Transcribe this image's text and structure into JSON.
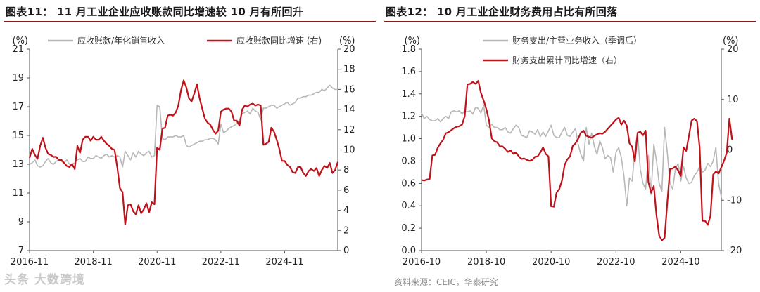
{
  "charts_meta": {
    "left_title": "图表11：  11 月工业企业应收账款同比增速较 10 月有所回升",
    "right_title": "图表12：  10 月工业企业财务费用占比有所回落",
    "left_source": "资料来源：CEIC，华泰研究",
    "right_source": "资料来源：CEIC，华泰研究",
    "watermark": "头条 大数跨境"
  },
  "colors": {
    "gray": "#b7b7b7",
    "red": "#c0121b",
    "axis": "#555555",
    "title_rule": "#8a1b1b"
  },
  "chart_data": [
    {
      "type": "line",
      "title": "11 月工业企业应收账款同比增速较 10 月有所回升",
      "left_unit": "(%)",
      "right_unit": "(%)",
      "ylim_left": [
        7,
        21
      ],
      "ylim_right": [
        0,
        20
      ],
      "left_ticks": [
        7,
        9,
        11,
        13,
        15,
        17,
        19,
        21
      ],
      "right_ticks": [
        0,
        2,
        4,
        6,
        8,
        10,
        12,
        14,
        16,
        18,
        20
      ],
      "x_start": "2016-11",
      "x_end": "2024-11",
      "x_ticks": [
        "2016-11",
        "2018-11",
        "2020-11",
        "2022-11",
        "2024-11"
      ],
      "legend_position": "top",
      "series": [
        {
          "name": "应收账款/年化销售收入",
          "axis": "left",
          "color": "#b7b7b7",
          "values": [
            13.0,
            13.1,
            13.3,
            12.9,
            12.8,
            12.9,
            13.2,
            13.4,
            13.1,
            13.0,
            13.2,
            13.3,
            13.2,
            13.1,
            13.3,
            13.0,
            13.0,
            13.1,
            13.3,
            13.4,
            13.2,
            13.2,
            13.5,
            13.4,
            13.4,
            13.6,
            13.5,
            13.4,
            13.6,
            13.7,
            13.5,
            13.6,
            13.5,
            13.6,
            13.5,
            12.8,
            13.9,
            13.6,
            13.3,
            13.8,
            13.5,
            13.9,
            13.7,
            13.6,
            13.8,
            13.9,
            13.5,
            13.6,
            17.1,
            17.0,
            14.8,
            14.7,
            14.9,
            14.9,
            14.9,
            15.0,
            14.9,
            14.9,
            15.0,
            14.3,
            14.2,
            14.3,
            14.4,
            14.5,
            14.6,
            14.6,
            14.7,
            14.7,
            14.8,
            14.8,
            14.7,
            14.4,
            15.8,
            15.2,
            15.3,
            15.5,
            15.6,
            15.7,
            15.8,
            16.1,
            16.5,
            16.6,
            16.7,
            16.5,
            16.9,
            16.7,
            16.6,
            16.1,
            16.9,
            16.9,
            17.0,
            17.1,
            17.1,
            16.9,
            17.0,
            17.1,
            17.2,
            17.3,
            17.1,
            17.2,
            17.3,
            17.6,
            17.6,
            17.7,
            17.7,
            17.8,
            17.8,
            17.9,
            18.0,
            18.0,
            18.2,
            18.1,
            18.3,
            18.5,
            18.3,
            18.2,
            18.2
          ]
        },
        {
          "name": "应收账款同比增速 (右)",
          "axis": "right",
          "color": "#c0121b",
          "values": [
            9.2,
            10.1,
            9.5,
            9.1,
            10.4,
            11.2,
            10.2,
            9.6,
            9.5,
            9.3,
            9.3,
            9.0,
            9.0,
            8.7,
            8.4,
            8.3,
            8.6,
            8.1,
            10.4,
            9.7,
            11.0,
            11.3,
            11.3,
            10.9,
            11.3,
            11.0,
            11.0,
            11.3,
            10.9,
            10.6,
            10.4,
            10.1,
            10.0,
            8.3,
            6.2,
            5.8,
            2.6,
            4.5,
            4.6,
            3.9,
            3.6,
            4.5,
            3.7,
            4.1,
            4.7,
            3.8,
            4.8,
            4.6,
            10.2,
            10.0,
            12.1,
            12.2,
            13.4,
            13.5,
            13.4,
            13.7,
            14.4,
            15.9,
            16.9,
            16.2,
            15.1,
            14.8,
            15.6,
            16.5,
            15.1,
            14.1,
            13.1,
            12.7,
            12.5,
            12.0,
            11.6,
            11.9,
            13.8,
            14.0,
            14.1,
            14.1,
            13.8,
            12.9,
            12.9,
            12.4,
            14.0,
            14.4,
            14.3,
            14.5,
            14.6,
            14.4,
            14.5,
            14.4,
            10.5,
            10.6,
            10.8,
            12.2,
            11.8,
            11.0,
            10.1,
            8.9,
            8.9,
            8.5,
            8.3,
            7.8,
            7.7,
            8.3,
            8.3,
            7.7,
            7.4,
            7.9,
            8.1,
            7.9,
            8.2,
            7.4,
            8.0,
            8.4,
            8.2,
            8.7,
            7.7,
            8.0,
            8.8
          ]
        }
      ]
    },
    {
      "type": "line",
      "title": "10 月工业企业财务费用占比有所回落",
      "left_unit": "(%)",
      "right_unit": "(%)",
      "ylim_left": [
        0.0,
        1.8
      ],
      "ylim_right": [
        -20,
        20
      ],
      "left_ticks": [
        0.0,
        0.2,
        0.4,
        0.6,
        0.8,
        1.0,
        1.2,
        1.4,
        1.6,
        1.8
      ],
      "right_ticks": [
        -20,
        -10,
        0,
        10,
        20
      ],
      "x_start": "2016-10",
      "x_end": "2024-10",
      "x_ticks": [
        "2016-10",
        "2018-10",
        "2020-10",
        "2022-10",
        "2024-10"
      ],
      "legend_position": "top",
      "series": [
        {
          "name": "财务支出/主营业务收入（季调后）",
          "axis": "left",
          "color": "#b7b7b7",
          "values": [
            1.23,
            1.18,
            1.2,
            1.17,
            1.16,
            1.16,
            1.18,
            1.15,
            1.18,
            1.2,
            1.18,
            1.24,
            1.25,
            1.24,
            1.25,
            1.22,
            1.25,
            1.24,
            1.25,
            1.22,
            1.28,
            1.27,
            1.23,
            1.3,
            1.12,
            1.1,
            1.13,
            1.1,
            1.1,
            1.08,
            1.08,
            1.1,
            1.06,
            1.05,
            1.09,
            1.12,
            1.1,
            1.03,
            1.02,
            1.01,
            1.07,
            1.06,
            1.04,
            1.08,
            1.02,
            1.06,
            1.02,
            1.07,
            1.12,
            1.03,
            1.01,
            1.01,
            1.06,
            1.1,
            1.03,
            1.02,
            1.06,
            1.09,
            0.95,
            0.86,
            0.8,
            1.1,
            0.95,
            1.05,
            0.93,
            0.86,
            0.98,
            0.92,
            0.82,
            0.85,
            0.83,
            0.7,
            0.88,
            0.92,
            0.83,
            0.66,
            0.4,
            0.65,
            0.62,
            0.9,
            1.05,
            0.73,
            0.6,
            0.55,
            0.85,
            0.5,
            0.95,
            0.8,
            0.6,
            0.53,
            1.1,
            0.88,
            0.6,
            0.55,
            0.73,
            0.78,
            0.62,
            0.75,
            0.65,
            0.6,
            0.61,
            0.67,
            0.7,
            0.75,
            0.7,
            0.72,
            0.78,
            0.75,
            0.8,
            0.92,
            0.6,
            0.48
          ]
        },
        {
          "name": "财务支出累计同比增速（右）",
          "axis": "right",
          "color": "#c0121b",
          "values": [
            -6.0,
            -6.1,
            -5.9,
            -5.8,
            -1.1,
            -1.0,
            0.4,
            1.3,
            2.0,
            3.3,
            3.5,
            3.9,
            4.3,
            4.6,
            4.7,
            5.0,
            6.7,
            13.0,
            13.1,
            13.5,
            13.1,
            13.7,
            11.3,
            9.8,
            8.1,
            5.9,
            2.3,
            1.7,
            1.5,
            0.7,
            0.7,
            0.2,
            -0.4,
            -0.1,
            -0.8,
            -0.5,
            -1.3,
            -1.8,
            -1.7,
            -2.0,
            -2.2,
            -2.0,
            -1.4,
            -1.3,
            -0.5,
            0.5,
            -0.8,
            -1.3,
            -11.2,
            -11.3,
            -8.5,
            -7.8,
            -6.1,
            -3.0,
            -1.9,
            -1.3,
            0.8,
            1.3,
            2.2,
            3.4,
            3.8,
            2.8,
            2.6,
            2.4,
            2.8,
            3.1,
            3.3,
            3.2,
            3.6,
            4.2,
            4.8,
            5.4,
            6.0,
            6.4,
            5.0,
            5.8,
            4.8,
            1.3,
            0.6,
            -2.3,
            3.4,
            3.6,
            2.9,
            3.8,
            -6.4,
            -8.5,
            -7.2,
            -13.0,
            -17.0,
            -18.0,
            -17.5,
            -10.6,
            -3.8,
            -3.7,
            -3.3,
            -4.1,
            -5.2,
            0.5,
            -0.2,
            2.7,
            5.8,
            6.2,
            5.7,
            0.4,
            -14.1,
            -14.1,
            -14.9,
            -13.1,
            -4.9,
            -4.3,
            -4.7,
            -3.5,
            -2.2,
            -0.6,
            6.2,
            2.0
          ]
        }
      ]
    }
  ]
}
